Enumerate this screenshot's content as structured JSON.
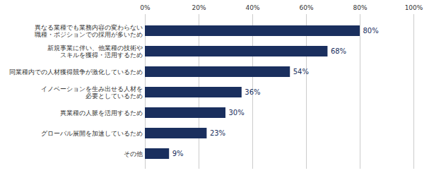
{
  "chart_data": {
    "type": "bar",
    "orientation": "horizontal",
    "categories": [
      "その他",
      "グローバル展開を加速しているため",
      "異業種の人脈を活用するため",
      "イノベーションを生み出せる人材を\n必要としているため",
      "同業種内での人材獲得競争が激化しているため",
      "新規事業に伴い、他業種の技術や\nスキルを獲得・活用するため",
      "異なる業種でも業務内容の変わらない\n職種・ポジションでの採用が多いため"
    ],
    "values": [
      9,
      23,
      30,
      36,
      54,
      68,
      80
    ],
    "value_labels": [
      "9%",
      "23%",
      "30%",
      "36%",
      "54%",
      "68%",
      "80%"
    ],
    "data_labels": true,
    "color": "#1a2f5e",
    "xlim": [
      0,
      100
    ],
    "xticks": [
      {
        "value": 0,
        "label": "0%"
      },
      {
        "value": 20,
        "label": "20%"
      },
      {
        "value": 40,
        "label": "40%"
      },
      {
        "value": 60,
        "label": "60%"
      },
      {
        "value": 80,
        "label": "80%"
      },
      {
        "value": 100,
        "label": "100%"
      }
    ],
    "grid": true
  }
}
